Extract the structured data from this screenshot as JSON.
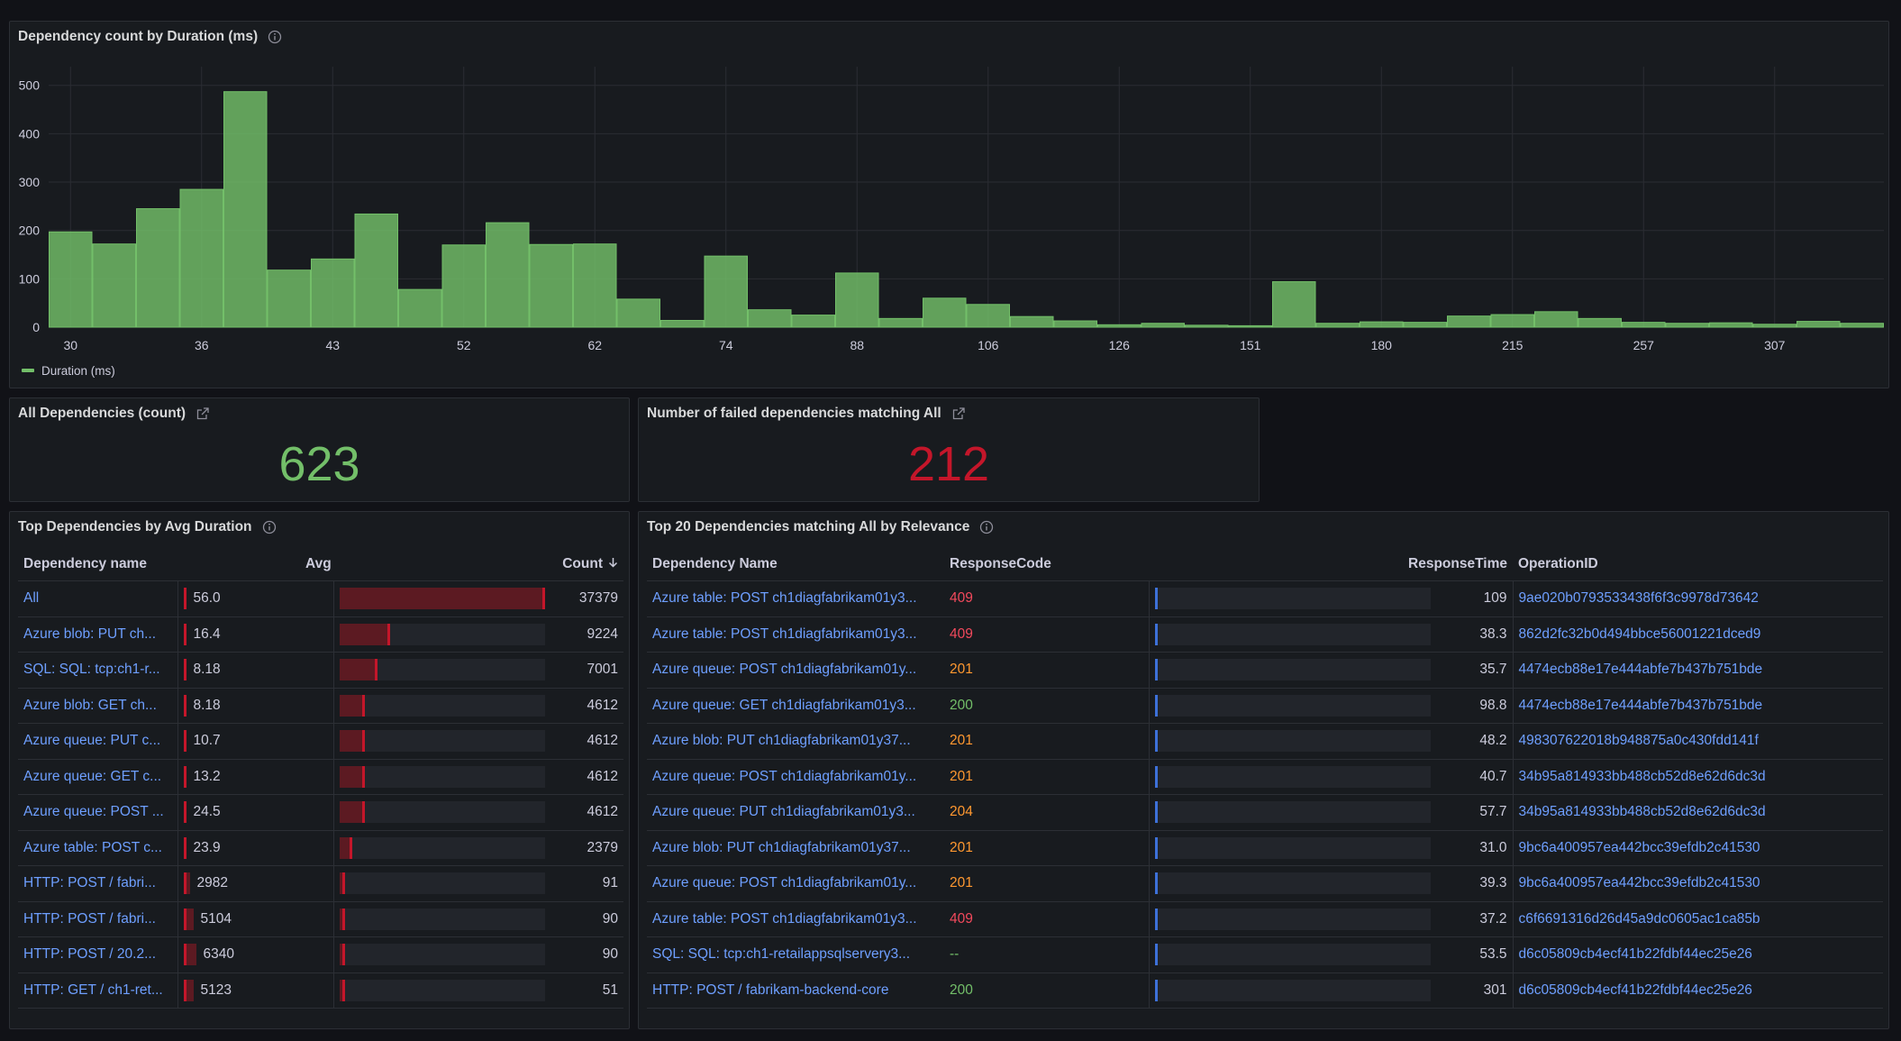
{
  "histogram": {
    "title": "Dependency count by Duration (ms)",
    "legend": "Duration (ms)"
  },
  "chart_data": {
    "type": "bar",
    "title": "Dependency count by Duration (ms)",
    "y_ticks": [
      0,
      100,
      200,
      300,
      400,
      500
    ],
    "ylim": [
      0,
      520
    ],
    "x_tick_labels": [
      "30",
      "36",
      "43",
      "52",
      "62",
      "74",
      "88",
      "106",
      "126",
      "151",
      "180",
      "215",
      "257",
      "307"
    ],
    "x_tick_bins": [
      0.5,
      3.5,
      6.5,
      9.5,
      12.5,
      15.5,
      18.5,
      21.5,
      24.5,
      27.5,
      30.5,
      33.5,
      36.5,
      39.5
    ],
    "series": [
      {
        "name": "Duration (ms)",
        "color": "#73bf69",
        "values": [
          197,
          172,
          245,
          285,
          487,
          118,
          141,
          234,
          78,
          170,
          216,
          171,
          172,
          58,
          14,
          147,
          36,
          25,
          112,
          18,
          60,
          47,
          22,
          13,
          5,
          8,
          4,
          3,
          94,
          8,
          11,
          10,
          23,
          26,
          32,
          18,
          10,
          8,
          9,
          6,
          12,
          8
        ]
      }
    ],
    "grid": true,
    "legend_position": "bottom-left"
  },
  "stat_all": {
    "title": "All Dependencies (count)",
    "value": "623",
    "color": "#73bf69"
  },
  "stat_failed": {
    "title": "Number of failed dependencies matching All",
    "value": "212",
    "color": "#c4162a"
  },
  "top_deps": {
    "title": "Top Dependencies by Avg Duration",
    "headers": {
      "name": "Dependency name",
      "avg": "Avg",
      "count": "Count"
    },
    "count_max": 37379,
    "rows": [
      {
        "name": "All",
        "avg": "56.0",
        "avg_level": 0.01,
        "count": "37379",
        "count_value": 37379
      },
      {
        "name": "Azure blob: PUT ch...",
        "avg": "16.4",
        "avg_level": 0.003,
        "count": "9224",
        "count_value": 9224
      },
      {
        "name": "SQL: SQL: tcp:ch1-r...",
        "avg": "8.18",
        "avg_level": 0.002,
        "count": "7001",
        "count_value": 7001
      },
      {
        "name": "Azure blob: GET ch...",
        "avg": "8.18",
        "avg_level": 0.002,
        "count": "4612",
        "count_value": 4612
      },
      {
        "name": "Azure queue: PUT c...",
        "avg": "10.7",
        "avg_level": 0.002,
        "count": "4612",
        "count_value": 4612
      },
      {
        "name": "Azure queue: GET c...",
        "avg": "13.2",
        "avg_level": 0.003,
        "count": "4612",
        "count_value": 4612
      },
      {
        "name": "Azure queue: POST ...",
        "avg": "24.5",
        "avg_level": 0.004,
        "count": "4612",
        "count_value": 4612
      },
      {
        "name": "Azure table: POST c...",
        "avg": "23.9",
        "avg_level": 0.004,
        "count": "2379",
        "count_value": 2379
      },
      {
        "name": "HTTP: POST / fabri...",
        "avg": "2982",
        "avg_level": 0.47,
        "count": "91",
        "count_value": 91
      },
      {
        "name": "HTTP: POST / fabri...",
        "avg": "5104",
        "avg_level": 0.8,
        "count": "90",
        "count_value": 90
      },
      {
        "name": "HTTP: POST / 20.2...",
        "avg": "6340",
        "avg_level": 1.0,
        "count": "90",
        "count_value": 90
      },
      {
        "name": "HTTP: GET / ch1-ret...",
        "avg": "5123",
        "avg_level": 0.81,
        "count": "51",
        "count_value": 51
      }
    ]
  },
  "top20": {
    "title": "Top 20 Dependencies matching All by Relevance",
    "headers": {
      "name": "Dependency Name",
      "code": "ResponseCode",
      "time": "ResponseTime",
      "op": "OperationID"
    },
    "code_colors": {
      "red": "#f2495c",
      "orange": "#ff9830",
      "green": "#73bf69"
    },
    "rows": [
      {
        "name": "Azure table: POST ch1diagfabrikam01y3...",
        "code": "409",
        "code_color": "#f2495c",
        "time": "109",
        "op": "9ae020b0793533438f6f3c9978d73642"
      },
      {
        "name": "Azure table: POST ch1diagfabrikam01y3...",
        "code": "409",
        "code_color": "#f2495c",
        "time": "38.3",
        "op": "862d2fc32b0d494bbce56001221dced9"
      },
      {
        "name": "Azure queue: POST ch1diagfabrikam01y...",
        "code": "201",
        "code_color": "#ff9830",
        "time": "35.7",
        "op": "4474ecb88e17e444abfe7b437b751bde"
      },
      {
        "name": "Azure queue: GET ch1diagfabrikam01y3...",
        "code": "200",
        "code_color": "#73bf69",
        "time": "98.8",
        "op": "4474ecb88e17e444abfe7b437b751bde"
      },
      {
        "name": "Azure blob: PUT ch1diagfabrikam01y37...",
        "code": "201",
        "code_color": "#ff9830",
        "time": "48.2",
        "op": "498307622018b948875a0c430fdd141f"
      },
      {
        "name": "Azure queue: POST ch1diagfabrikam01y...",
        "code": "201",
        "code_color": "#ff9830",
        "time": "40.7",
        "op": "34b95a814933bb488cb52d8e62d6dc3d"
      },
      {
        "name": "Azure queue: PUT ch1diagfabrikam01y3...",
        "code": "204",
        "code_color": "#ff9830",
        "time": "57.7",
        "op": "34b95a814933bb488cb52d8e62d6dc3d"
      },
      {
        "name": "Azure blob: PUT ch1diagfabrikam01y37...",
        "code": "201",
        "code_color": "#ff9830",
        "time": "31.0",
        "op": "9bc6a400957ea442bcc39efdb2c41530"
      },
      {
        "name": "Azure queue: POST ch1diagfabrikam01y...",
        "code": "201",
        "code_color": "#ff9830",
        "time": "39.3",
        "op": "9bc6a400957ea442bcc39efdb2c41530"
      },
      {
        "name": "Azure table: POST ch1diagfabrikam01y3...",
        "code": "409",
        "code_color": "#f2495c",
        "time": "37.2",
        "op": "c6f6691316d26d45a9dc0605ac1ca85b"
      },
      {
        "name": "SQL: SQL: tcp:ch1-retailappsqlservery3...",
        "code": "--",
        "code_color": "#73bf69",
        "time": "53.5",
        "op": "d6c05809cb4ecf41b22fdbf44ec25e26"
      },
      {
        "name": "HTTP: POST / fabrikam-backend-core",
        "code": "200",
        "code_color": "#73bf69",
        "time": "301",
        "op": "d6c05809cb4ecf41b22fdbf44ec25e26"
      }
    ]
  }
}
